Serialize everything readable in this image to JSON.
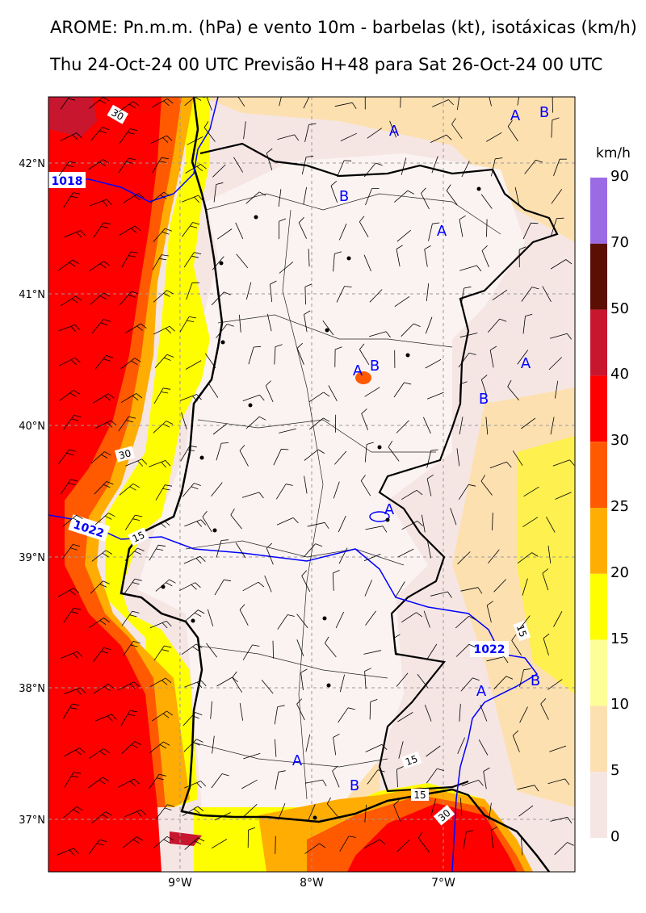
{
  "header": {
    "title": "AROME: Pn.m.m. (hPa) e vento 10m - barbelas (kt), isotáxicas (km/h)",
    "subtitle": "Thu 24-Oct-24 00 UTC Previsão H+48 para Sat 26-Oct-24 00 UTC"
  },
  "axes": {
    "lat_labels": [
      "42°N",
      "41°N",
      "40°N",
      "39°N",
      "38°N",
      "37°N"
    ],
    "lon_labels": [
      "9°W",
      "8°W",
      "7°W"
    ]
  },
  "legend": {
    "unit": "km/h",
    "levels": [
      "90",
      "70",
      "50",
      "40",
      "30",
      "25",
      "20",
      "15",
      "10",
      "5",
      "0"
    ],
    "colors": [
      "#9b6be6",
      "#5a0e04",
      "#c8162f",
      "#fe0000",
      "#ff5a02",
      "#ffad03",
      "#fefe00",
      "#fefe99",
      "#fde0b0",
      "#f5e6e4"
    ]
  },
  "isobars": {
    "labels": [
      "1018",
      "1022",
      "1022"
    ],
    "color": "#0000ff"
  },
  "isotach_labels": [
    "30",
    "30",
    "15",
    "15",
    "15",
    "15",
    "30"
  ],
  "pressure_markers": {
    "labels": [
      "A",
      "B",
      "A",
      "B",
      "A",
      "A",
      "B",
      "A",
      "B",
      "A",
      "A",
      "B",
      "A",
      "B"
    ],
    "color": "#0000ff"
  }
}
